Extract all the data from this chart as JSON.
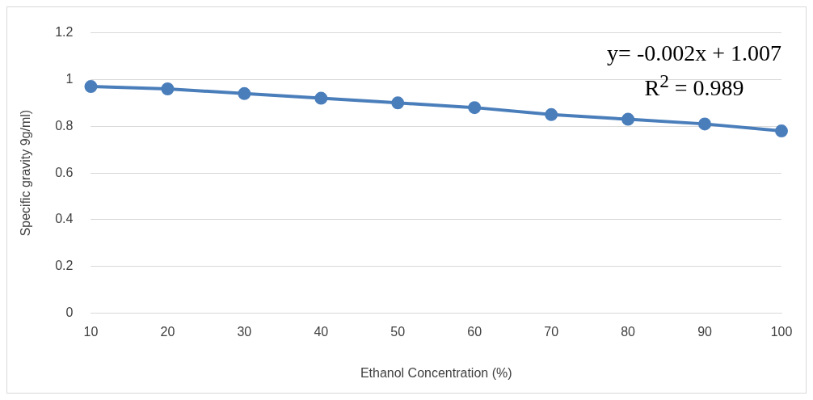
{
  "chart_data": {
    "type": "line",
    "xlabel": "Ethanol Concentration (%)",
    "ylabel": "Specific gravity 9g/ml)",
    "categories": [
      "10",
      "20",
      "30",
      "40",
      "50",
      "60",
      "70",
      "80",
      "90",
      "100"
    ],
    "series": [
      {
        "color": "#4a7ebb",
        "values": [
          0.97,
          0.96,
          0.94,
          0.92,
          0.9,
          0.88,
          0.85,
          0.83,
          0.81,
          0.78
        ]
      }
    ],
    "ylim": [
      0,
      1.2
    ],
    "yticks": [
      0,
      0.2,
      0.4,
      0.6,
      0.8,
      1,
      1.2
    ],
    "grid": "y",
    "marker": "circle",
    "line_style": "solid",
    "legend": false,
    "annotations": [
      "y= -0.002x + 1.007",
      "R$^{2}$ = 0.989"
    ]
  }
}
